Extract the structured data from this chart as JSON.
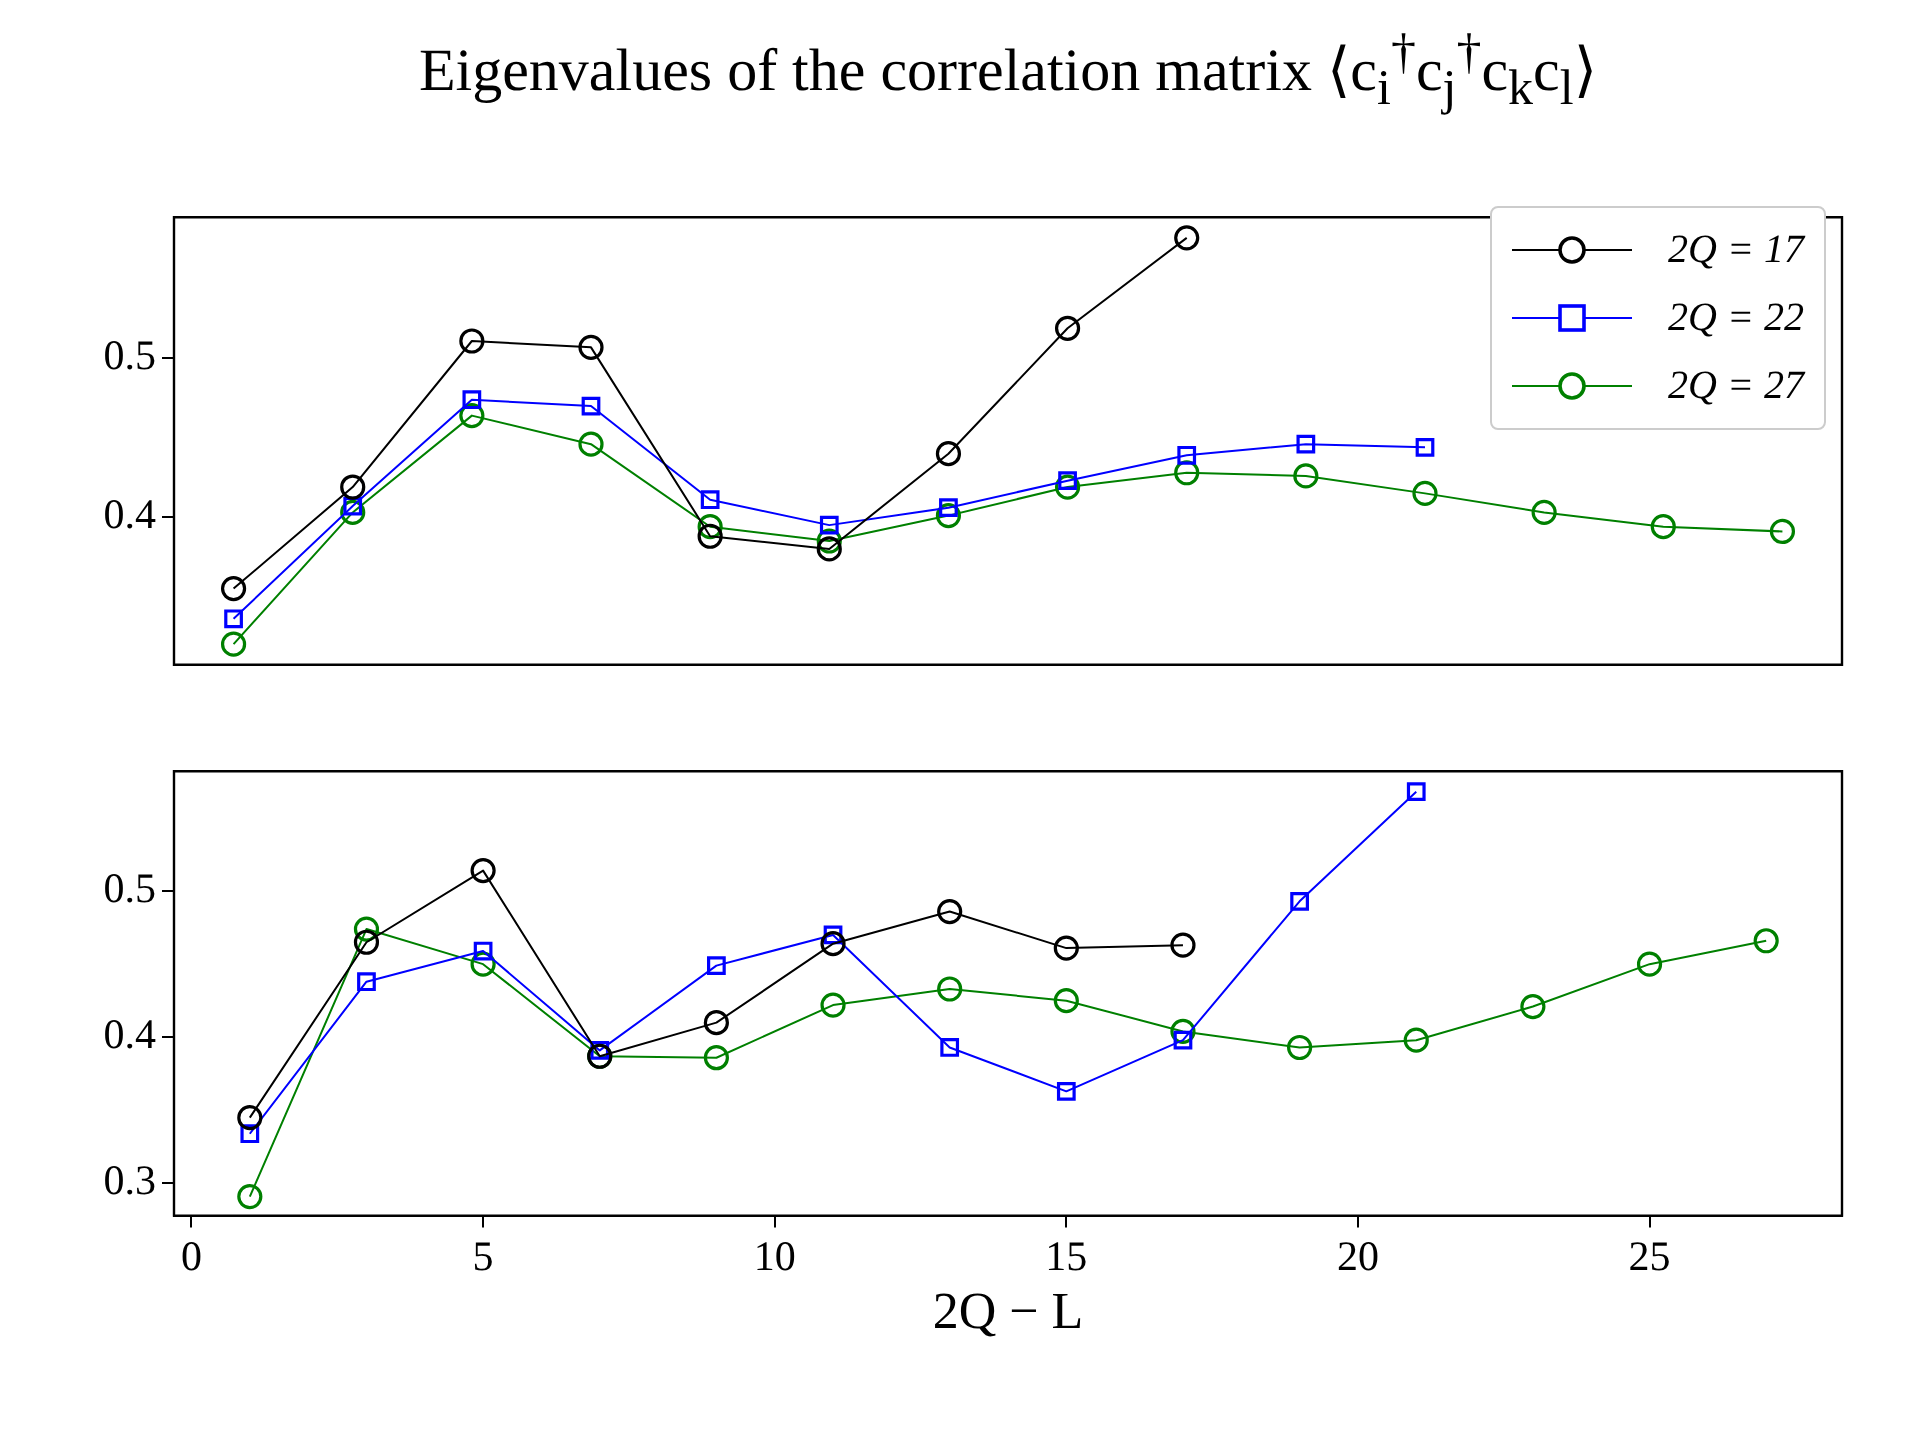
{
  "chart_data": [
    {
      "type": "line",
      "title": "Eigenvalues of the correlation matrix ⟨c$_{i}$$^{†}$c$_{j}$$^{†}$c$_{k}$c$_{l}$⟩",
      "categories": [
        null,
        null,
        null,
        null,
        null,
        null,
        null,
        null,
        null,
        null,
        null,
        null,
        null,
        null
      ],
      "ylim": [
        0.307,
        0.589
      ],
      "yticks": [
        0.4,
        0.5
      ],
      "tick_labels": "y",
      "legend": "top right",
      "series": [
        {
          "name": "2Q = 17",
          "color": "#000000",
          "marker": "circle",
          "values": [
            0.355,
            0.419,
            0.511,
            0.507,
            0.388,
            0.38,
            0.44,
            0.519,
            0.576,
            null,
            null,
            null,
            null,
            null
          ]
        },
        {
          "name": "2Q = 22",
          "color": "#0000ff",
          "marker": "square",
          "values": [
            0.336,
            0.407,
            0.474,
            0.47,
            0.411,
            0.395,
            0.406,
            0.423,
            0.439,
            0.446,
            0.444,
            null,
            null,
            null
          ]
        },
        {
          "name": "2Q = 27",
          "color": "#008000",
          "marker": "circle",
          "values": [
            0.32,
            0.403,
            0.464,
            0.446,
            0.394,
            0.385,
            0.401,
            0.419,
            0.428,
            0.426,
            0.415,
            0.403,
            0.394,
            0.391
          ]
        }
      ]
    },
    {
      "type": "line",
      "xlabel": "2Q − L",
      "xlim": [
        -0.3,
        28.3
      ],
      "xticks": [
        0,
        5,
        10,
        15,
        20,
        25
      ],
      "ylim": [
        0.278,
        0.582
      ],
      "yticks": [
        0.3,
        0.4,
        0.5
      ],
      "series": [
        {
          "color": "#000000",
          "marker": "circle",
          "x": [
            1,
            3,
            5,
            7,
            9,
            11,
            13,
            15,
            17
          ],
          "values": [
            0.345,
            0.465,
            0.514,
            0.387,
            0.41,
            0.464,
            0.486,
            0.461,
            0.463
          ]
        },
        {
          "color": "#0000ff",
          "marker": "square",
          "x": [
            1,
            3,
            5,
            7,
            9,
            11,
            13,
            15,
            17,
            19,
            21
          ],
          "values": [
            0.334,
            0.438,
            0.459,
            0.391,
            0.449,
            0.47,
            0.393,
            0.363,
            0.398,
            0.493,
            0.568
          ]
        },
        {
          "color": "#008000",
          "marker": "circle",
          "x": [
            1,
            3,
            5,
            7,
            9,
            11,
            13,
            15,
            17,
            19,
            21,
            23,
            25,
            27
          ],
          "values": [
            0.291,
            0.474,
            0.45,
            0.387,
            0.386,
            0.422,
            0.433,
            0.425,
            0.404,
            0.393,
            0.398,
            0.421,
            0.45,
            0.466
          ]
        }
      ]
    }
  ]
}
